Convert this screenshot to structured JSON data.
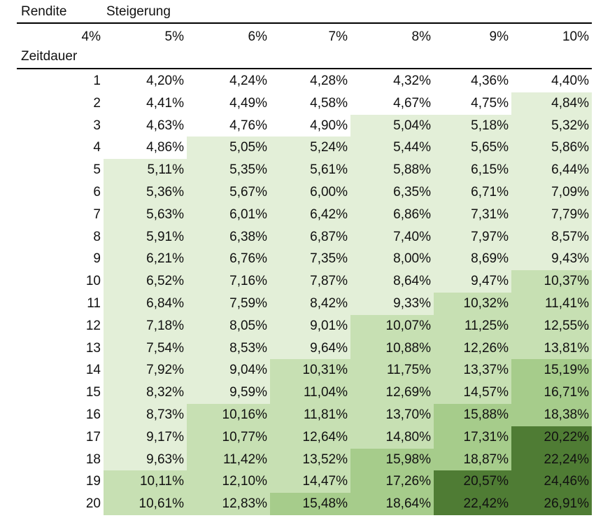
{
  "header": {
    "rendite_label": "Rendite",
    "steigerung_label": "Steigerung",
    "zeitdauer_label": "Zeitdauer",
    "rate_columns": [
      "4%",
      "5%",
      "6%",
      "7%",
      "8%",
      "9%",
      "10%"
    ]
  },
  "colors": {
    "level0": "#ffffff",
    "level1": "#e3efd8",
    "level2": "#c7e0b3",
    "level3": "#a6cc8b",
    "level4": "#4f7c34"
  },
  "rows": [
    {
      "period": "1",
      "values": [
        "4,20%",
        "4,24%",
        "4,28%",
        "4,32%",
        "4,36%",
        "4,40%"
      ],
      "levels": [
        0,
        0,
        0,
        0,
        0,
        0
      ]
    },
    {
      "period": "2",
      "values": [
        "4,41%",
        "4,49%",
        "4,58%",
        "4,67%",
        "4,75%",
        "4,84%"
      ],
      "levels": [
        0,
        0,
        0,
        0,
        0,
        1
      ]
    },
    {
      "period": "3",
      "values": [
        "4,63%",
        "4,76%",
        "4,90%",
        "5,04%",
        "5,18%",
        "5,32%"
      ],
      "levels": [
        0,
        0,
        0,
        1,
        1,
        1
      ]
    },
    {
      "period": "4",
      "values": [
        "4,86%",
        "5,05%",
        "5,24%",
        "5,44%",
        "5,65%",
        "5,86%"
      ],
      "levels": [
        0,
        1,
        1,
        1,
        1,
        1
      ]
    },
    {
      "period": "5",
      "values": [
        "5,11%",
        "5,35%",
        "5,61%",
        "5,88%",
        "6,15%",
        "6,44%"
      ],
      "levels": [
        1,
        1,
        1,
        1,
        1,
        1
      ]
    },
    {
      "period": "6",
      "values": [
        "5,36%",
        "5,67%",
        "6,00%",
        "6,35%",
        "6,71%",
        "7,09%"
      ],
      "levels": [
        1,
        1,
        1,
        1,
        1,
        1
      ]
    },
    {
      "period": "7",
      "values": [
        "5,63%",
        "6,01%",
        "6,42%",
        "6,86%",
        "7,31%",
        "7,79%"
      ],
      "levels": [
        1,
        1,
        1,
        1,
        1,
        1
      ]
    },
    {
      "period": "8",
      "values": [
        "5,91%",
        "6,38%",
        "6,87%",
        "7,40%",
        "7,97%",
        "8,57%"
      ],
      "levels": [
        1,
        1,
        1,
        1,
        1,
        1
      ]
    },
    {
      "period": "9",
      "values": [
        "6,21%",
        "6,76%",
        "7,35%",
        "8,00%",
        "8,69%",
        "9,43%"
      ],
      "levels": [
        1,
        1,
        1,
        1,
        1,
        1
      ]
    },
    {
      "period": "10",
      "values": [
        "6,52%",
        "7,16%",
        "7,87%",
        "8,64%",
        "9,47%",
        "10,37%"
      ],
      "levels": [
        1,
        1,
        1,
        1,
        1,
        2
      ]
    },
    {
      "period": "11",
      "values": [
        "6,84%",
        "7,59%",
        "8,42%",
        "9,33%",
        "10,32%",
        "11,41%"
      ],
      "levels": [
        1,
        1,
        1,
        1,
        2,
        2
      ]
    },
    {
      "period": "12",
      "values": [
        "7,18%",
        "8,05%",
        "9,01%",
        "10,07%",
        "11,25%",
        "12,55%"
      ],
      "levels": [
        1,
        1,
        1,
        2,
        2,
        2
      ]
    },
    {
      "period": "13",
      "values": [
        "7,54%",
        "8,53%",
        "9,64%",
        "10,88%",
        "12,26%",
        "13,81%"
      ],
      "levels": [
        1,
        1,
        1,
        2,
        2,
        2
      ]
    },
    {
      "period": "14",
      "values": [
        "7,92%",
        "9,04%",
        "10,31%",
        "11,75%",
        "13,37%",
        "15,19%"
      ],
      "levels": [
        1,
        1,
        2,
        2,
        2,
        3
      ]
    },
    {
      "period": "15",
      "values": [
        "8,32%",
        "9,59%",
        "11,04%",
        "12,69%",
        "14,57%",
        "16,71%"
      ],
      "levels": [
        1,
        1,
        2,
        2,
        2,
        3
      ]
    },
    {
      "period": "16",
      "values": [
        "8,73%",
        "10,16%",
        "11,81%",
        "13,70%",
        "15,88%",
        "18,38%"
      ],
      "levels": [
        1,
        2,
        2,
        2,
        3,
        3
      ]
    },
    {
      "period": "17",
      "values": [
        "9,17%",
        "10,77%",
        "12,64%",
        "14,80%",
        "17,31%",
        "20,22%"
      ],
      "levels": [
        1,
        2,
        2,
        2,
        3,
        4
      ]
    },
    {
      "period": "18",
      "values": [
        "9,63%",
        "11,42%",
        "13,52%",
        "15,98%",
        "18,87%",
        "22,24%"
      ],
      "levels": [
        1,
        2,
        2,
        3,
        3,
        4
      ]
    },
    {
      "period": "19",
      "values": [
        "10,11%",
        "12,10%",
        "14,47%",
        "17,26%",
        "20,57%",
        "24,46%"
      ],
      "levels": [
        2,
        2,
        2,
        3,
        4,
        4
      ]
    },
    {
      "period": "20",
      "values": [
        "10,61%",
        "12,83%",
        "15,48%",
        "18,64%",
        "22,42%",
        "26,91%"
      ],
      "levels": [
        2,
        2,
        3,
        3,
        4,
        4
      ]
    }
  ]
}
